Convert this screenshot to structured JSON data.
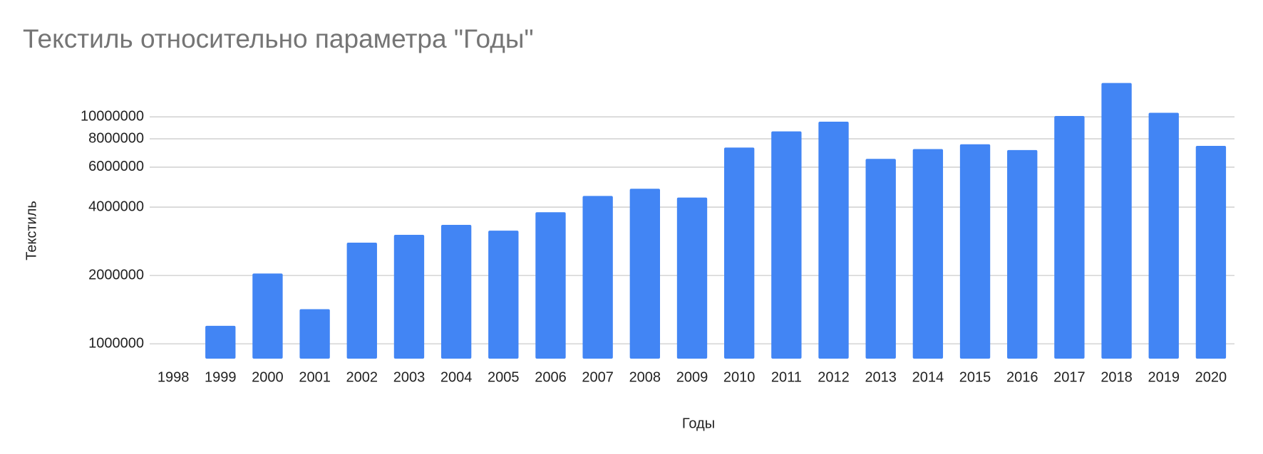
{
  "chart_data": {
    "type": "bar",
    "title": "Текстиль относительно параметра \"Годы\"",
    "x_label": "Годы",
    "y_label": "Текстиль",
    "categories": [
      "1998",
      "1999",
      "2000",
      "2001",
      "2002",
      "2003",
      "2004",
      "2005",
      "2006",
      "2007",
      "2008",
      "2009",
      "2010",
      "2011",
      "2012",
      "2013",
      "2014",
      "2015",
      "2016",
      "2017",
      "2018",
      "2019",
      "2020"
    ],
    "values": [
      null,
      1200000,
      2040000,
      1420000,
      2790000,
      3020000,
      3340000,
      3150000,
      3800000,
      4480000,
      4820000,
      4410000,
      7320000,
      8630000,
      9520000,
      6530000,
      7210000,
      7570000,
      7140000,
      10080000,
      14100000,
      10420000,
      7450000
    ],
    "color": "#4285f4",
    "log_scale": true,
    "ylim": [
      860000,
      15000000
    ],
    "yticks": [
      1000000,
      2000000,
      4000000,
      6000000,
      8000000,
      10000000
    ],
    "grid": true
  }
}
